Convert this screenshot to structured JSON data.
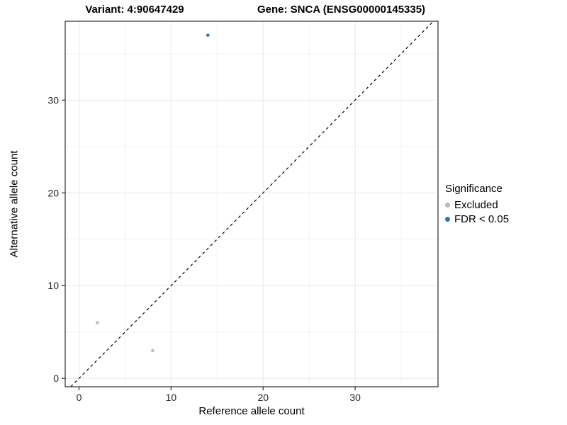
{
  "titles": {
    "variant": "Variant: 4:90647429",
    "gene": "Gene: SNCA (ENSG00000145335)"
  },
  "axes": {
    "x_label": "Reference allele count",
    "y_label": "Alternative allele count"
  },
  "legend": {
    "title": "Significance",
    "items": [
      {
        "label": "Excluded",
        "color": "#b9b9b9"
      },
      {
        "label": "FDR < 0.05",
        "color": "#3a70b2"
      }
    ]
  },
  "chart_data": {
    "type": "scatter",
    "title": "Variant: 4:90647429 — Gene: SNCA (ENSG00000145335)",
    "xlabel": "Reference allele count",
    "ylabel": "Alternative allele count",
    "xlim": [
      -1.5,
      39
    ],
    "ylim": [
      -0.9,
      38.5
    ],
    "x_ticks": [
      0,
      10,
      20,
      30
    ],
    "y_ticks": [
      0,
      10,
      20,
      30
    ],
    "x_minor_ticks": [
      5,
      15,
      25,
      35
    ],
    "y_minor_ticks": [
      5,
      15,
      25,
      35
    ],
    "grid": true,
    "legend_position": "right",
    "series": [
      {
        "name": "Excluded",
        "color": "#b9b9b9",
        "points": [
          [
            2,
            6
          ],
          [
            8,
            3
          ]
        ]
      },
      {
        "name": "FDR < 0.05",
        "color": "#3a70b2",
        "points": [
          [
            14,
            37
          ]
        ]
      }
    ],
    "identity_line": {
      "style": "dashed",
      "from": [
        -0.9,
        -0.9
      ],
      "to": [
        38.5,
        38.5
      ],
      "color": "#000000"
    },
    "panel_border_color": "#2b2b2b",
    "major_grid_color": "#e8e8e8",
    "minor_grid_color": "#f4f4f4",
    "tick_color": "#2b2b2b",
    "tick_label_color": "#262626"
  }
}
